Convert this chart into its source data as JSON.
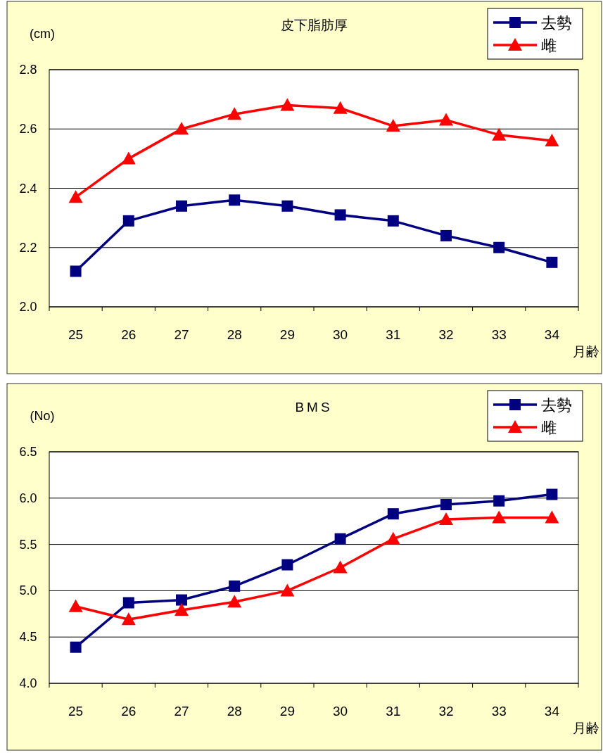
{
  "chart_data": [
    {
      "type": "line",
      "title": "皮下脂肪厚",
      "ylabel": "(cm)",
      "xlabel": "月齢",
      "categories": [
        "25",
        "26",
        "27",
        "28",
        "29",
        "30",
        "31",
        "32",
        "33",
        "34"
      ],
      "series": [
        {
          "name": "去勢",
          "color": "#000080",
          "marker": "square",
          "values": [
            2.12,
            2.29,
            2.34,
            2.36,
            2.34,
            2.31,
            2.29,
            2.24,
            2.2,
            2.15
          ]
        },
        {
          "name": "雌",
          "color": "#ff0000",
          "marker": "triangle",
          "values": [
            2.37,
            2.5,
            2.6,
            2.65,
            2.68,
            2.67,
            2.61,
            2.63,
            2.58,
            2.56
          ]
        }
      ],
      "ylim": [
        2.0,
        2.8
      ],
      "yticks": [
        {
          "value": 2.0,
          "label": "2.0"
        },
        2.2,
        2.4,
        2.6,
        2.8
      ],
      "grid": "y",
      "legend": "top right"
    },
    {
      "type": "line",
      "title": "BMS",
      "ylabel": "(No)",
      "xlabel": "月齢",
      "categories": [
        "25",
        "26",
        "27",
        "28",
        "29",
        "30",
        "31",
        "32",
        "33",
        "34"
      ],
      "series": [
        {
          "name": "去勢",
          "color": "#000080",
          "marker": "square",
          "values": [
            4.39,
            4.87,
            4.9,
            5.05,
            5.28,
            5.56,
            5.83,
            5.93,
            5.97,
            6.04
          ]
        },
        {
          "name": "雌",
          "color": "#ff0000",
          "marker": "triangle",
          "values": [
            4.83,
            4.69,
            4.79,
            4.88,
            5.0,
            5.25,
            5.56,
            5.77,
            5.79,
            5.79
          ]
        }
      ],
      "ylim": [
        4.0,
        6.5
      ],
      "yticks": [
        {
          "value": 4.0,
          "label": "4.0"
        },
        4.5,
        {
          "value": 5.0,
          "label": "5.0"
        },
        5.5,
        {
          "value": 6.0,
          "label": "6.0"
        },
        6.5
      ],
      "grid": "y",
      "legend": "top right"
    }
  ]
}
